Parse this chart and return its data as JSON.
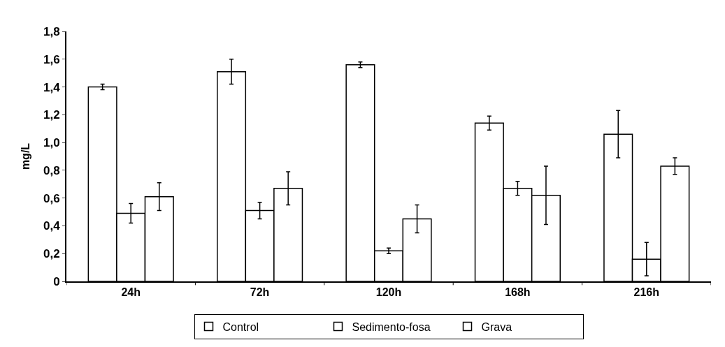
{
  "chart_data": {
    "type": "bar",
    "ylabel": "mg/L",
    "categories": [
      "24h",
      "72h",
      "120h",
      "168h",
      "216h"
    ],
    "series": [
      {
        "name": "Control",
        "color": "#ffffff",
        "values": [
          1.4,
          1.51,
          1.56,
          1.14,
          1.06
        ],
        "errors": [
          0.02,
          0.09,
          0.02,
          0.05,
          0.17
        ]
      },
      {
        "name": "Sedimento-fosa",
        "color": "#ffffff",
        "values": [
          0.49,
          0.51,
          0.22,
          0.67,
          0.16
        ],
        "errors": [
          0.07,
          0.06,
          0.02,
          0.05,
          0.12
        ]
      },
      {
        "name": "Grava",
        "color": "#ffffff",
        "values": [
          0.61,
          0.67,
          0.45,
          0.62,
          0.83
        ],
        "errors": [
          0.1,
          0.12,
          0.1,
          0.21,
          0.06
        ]
      }
    ],
    "ylim": [
      0,
      1.8
    ],
    "yticks": [
      0,
      {
        "value": 0.2,
        "label": "0,2"
      },
      {
        "value": 0.4,
        "label": "0,4"
      },
      {
        "value": 0.6,
        "label": "0,6"
      },
      {
        "value": 0.8,
        "label": "0,8"
      },
      {
        "value": 1.0,
        "label": "1,0"
      },
      {
        "value": 1.2,
        "label": "1,2"
      },
      {
        "value": 1.4,
        "label": "1,4"
      },
      {
        "value": 1.6,
        "label": "1,6"
      },
      {
        "value": 1.8,
        "label": "1,8"
      }
    ],
    "grid": false,
    "legend": "bottom"
  }
}
